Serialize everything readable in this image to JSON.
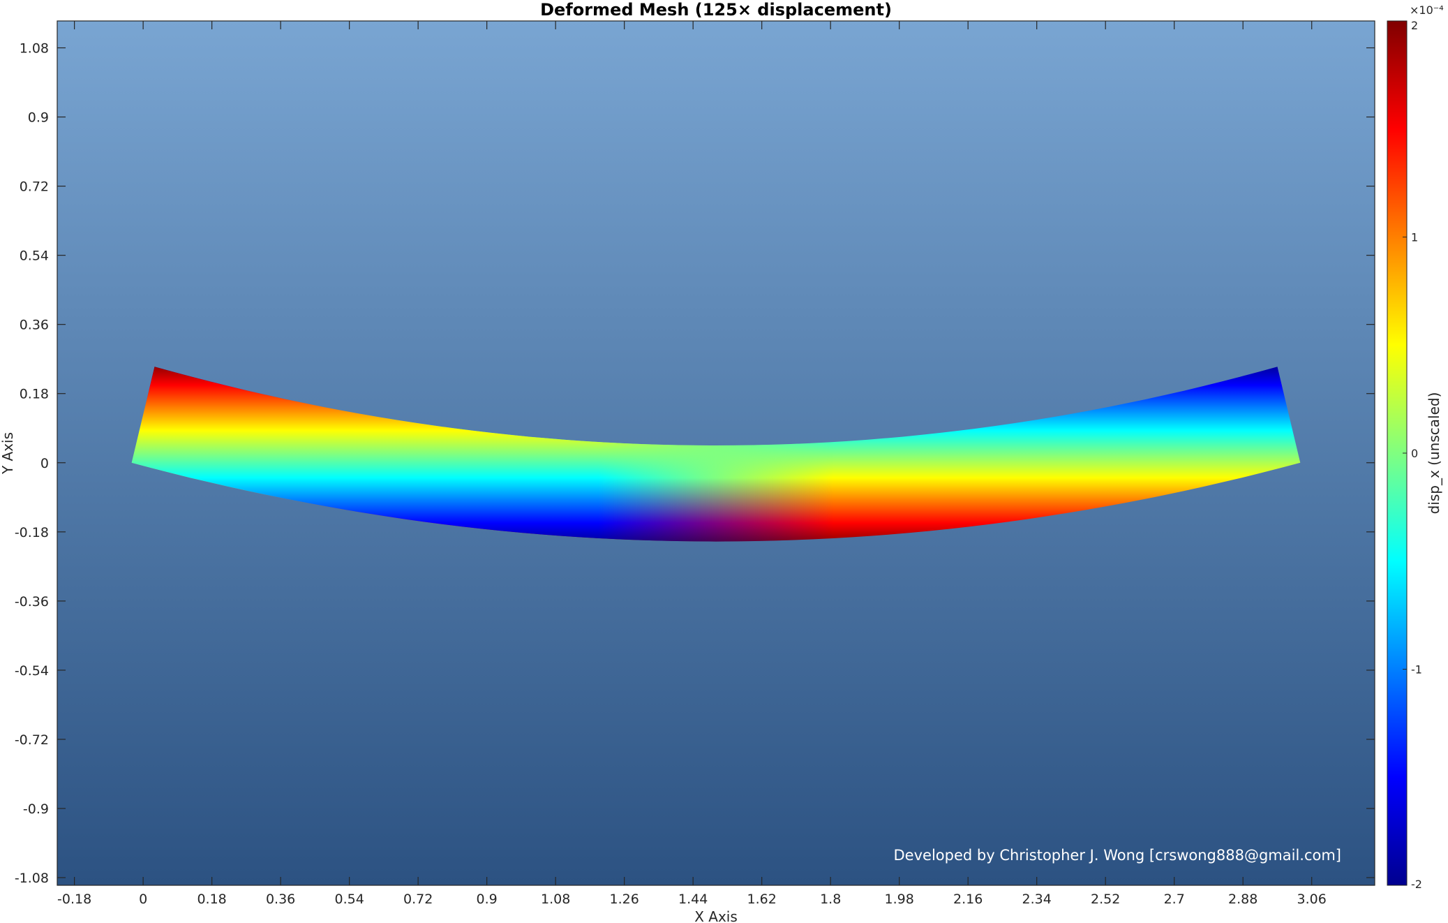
{
  "chart_data": {
    "type": "heatmap",
    "title": "Deformed Mesh (125× displacement)",
    "xlabel": "X Axis",
    "ylabel": "Y Axis",
    "xlim": [
      -0.225,
      3.225
    ],
    "ylim": [
      -1.1,
      1.15
    ],
    "x_ticks": [
      -0.18,
      0,
      0.18,
      0.36,
      0.54,
      0.72,
      0.9,
      1.08,
      1.26,
      1.44,
      1.62,
      1.8,
      1.98,
      2.16,
      2.34,
      2.52,
      2.7,
      2.88,
      3.06
    ],
    "x_tick_labels": [
      "-0.18",
      "0",
      "0.18",
      "0.36",
      "0.54",
      "0.72",
      "0.9",
      "1.08",
      "1.26",
      "1.44",
      "1.62",
      "1.8",
      "1.98",
      "2.16",
      "2.34",
      "2.52",
      "2.7",
      "2.88",
      "3.06"
    ],
    "y_ticks": [
      1.08,
      0.9,
      0.72,
      0.54,
      0.36,
      0.18,
      0,
      -0.18,
      -0.36,
      -0.54,
      -0.72,
      -0.9,
      -1.08
    ],
    "y_tick_labels": [
      "1.08",
      "0.9",
      "0.72",
      "0.54",
      "0.36",
      "0.18",
      "0",
      "-0.18",
      "-0.36",
      "-0.54",
      "-0.72",
      "-0.9",
      "-1.08"
    ],
    "deformed_beam": {
      "bottom_edge": [
        [
          -0.03,
          0.0
        ],
        [
          0.5,
          -0.11
        ],
        [
          1.0,
          -0.17
        ],
        [
          1.5,
          -0.205
        ],
        [
          2.0,
          -0.17
        ],
        [
          2.5,
          -0.11
        ],
        [
          3.03,
          0.0
        ]
      ],
      "top_edge": [
        [
          0.03,
          0.25
        ],
        [
          0.5,
          0.15
        ],
        [
          1.0,
          0.08
        ],
        [
          1.5,
          0.045
        ],
        [
          2.0,
          0.08
        ],
        [
          2.5,
          0.15
        ],
        [
          2.97,
          0.25
        ]
      ]
    },
    "colorbar": {
      "label": "disp_x (unscaled)",
      "exponent_label": "×10⁻⁴",
      "range": [
        -2,
        2
      ],
      "ticks": [
        2,
        1,
        0,
        -1,
        -2
      ],
      "tick_labels": [
        "2",
        "1",
        "0",
        "-1",
        "-2"
      ],
      "colormap": "jet"
    },
    "grid": false
  },
  "credit": "Developed by Christopher J. Wong [crswong888@gmail.com]",
  "colors": {
    "background_top": "#79a5d2",
    "background_bottom": "#2c5282"
  }
}
